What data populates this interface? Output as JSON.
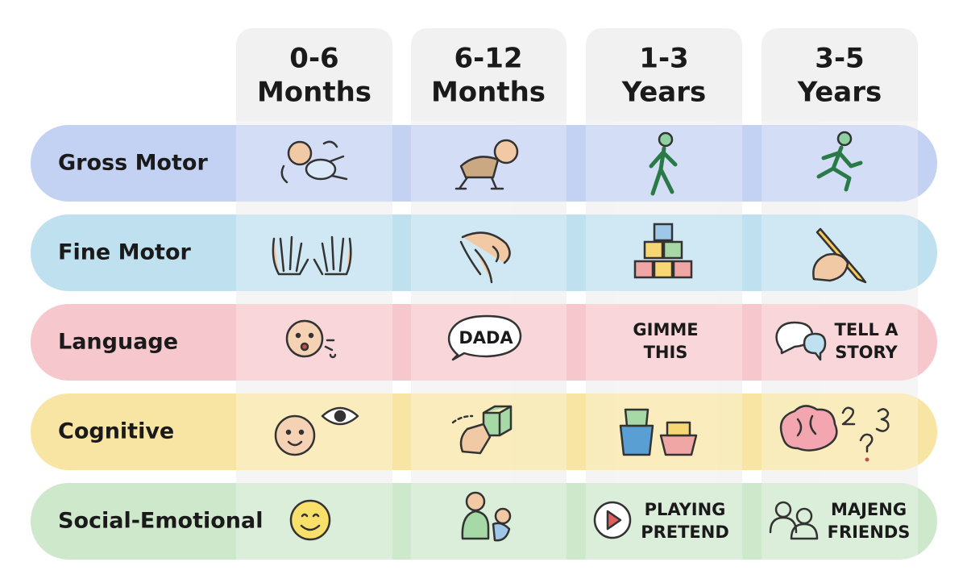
{
  "columns": [
    {
      "range": "0-6",
      "unit": "Months"
    },
    {
      "range": "6-12",
      "unit": "Months"
    },
    {
      "range": "1-3",
      "unit": "Years"
    },
    {
      "range": "3-5",
      "unit": "Years"
    }
  ],
  "rows": [
    {
      "label": "Gross Motor"
    },
    {
      "label": "Fine Motor"
    },
    {
      "label": "Language",
      "cells": {
        "1": "DADA",
        "2": [
          "GIMME",
          "THIS"
        ],
        "3": [
          "TELL A",
          "STORY"
        ]
      }
    },
    {
      "label": "Cognitive"
    },
    {
      "label": "Social-Emotional",
      "cells": {
        "2": [
          "PLAYING",
          "PRETEND"
        ],
        "3": [
          "MAJENG",
          "FRIENDS"
        ]
      }
    }
  ]
}
